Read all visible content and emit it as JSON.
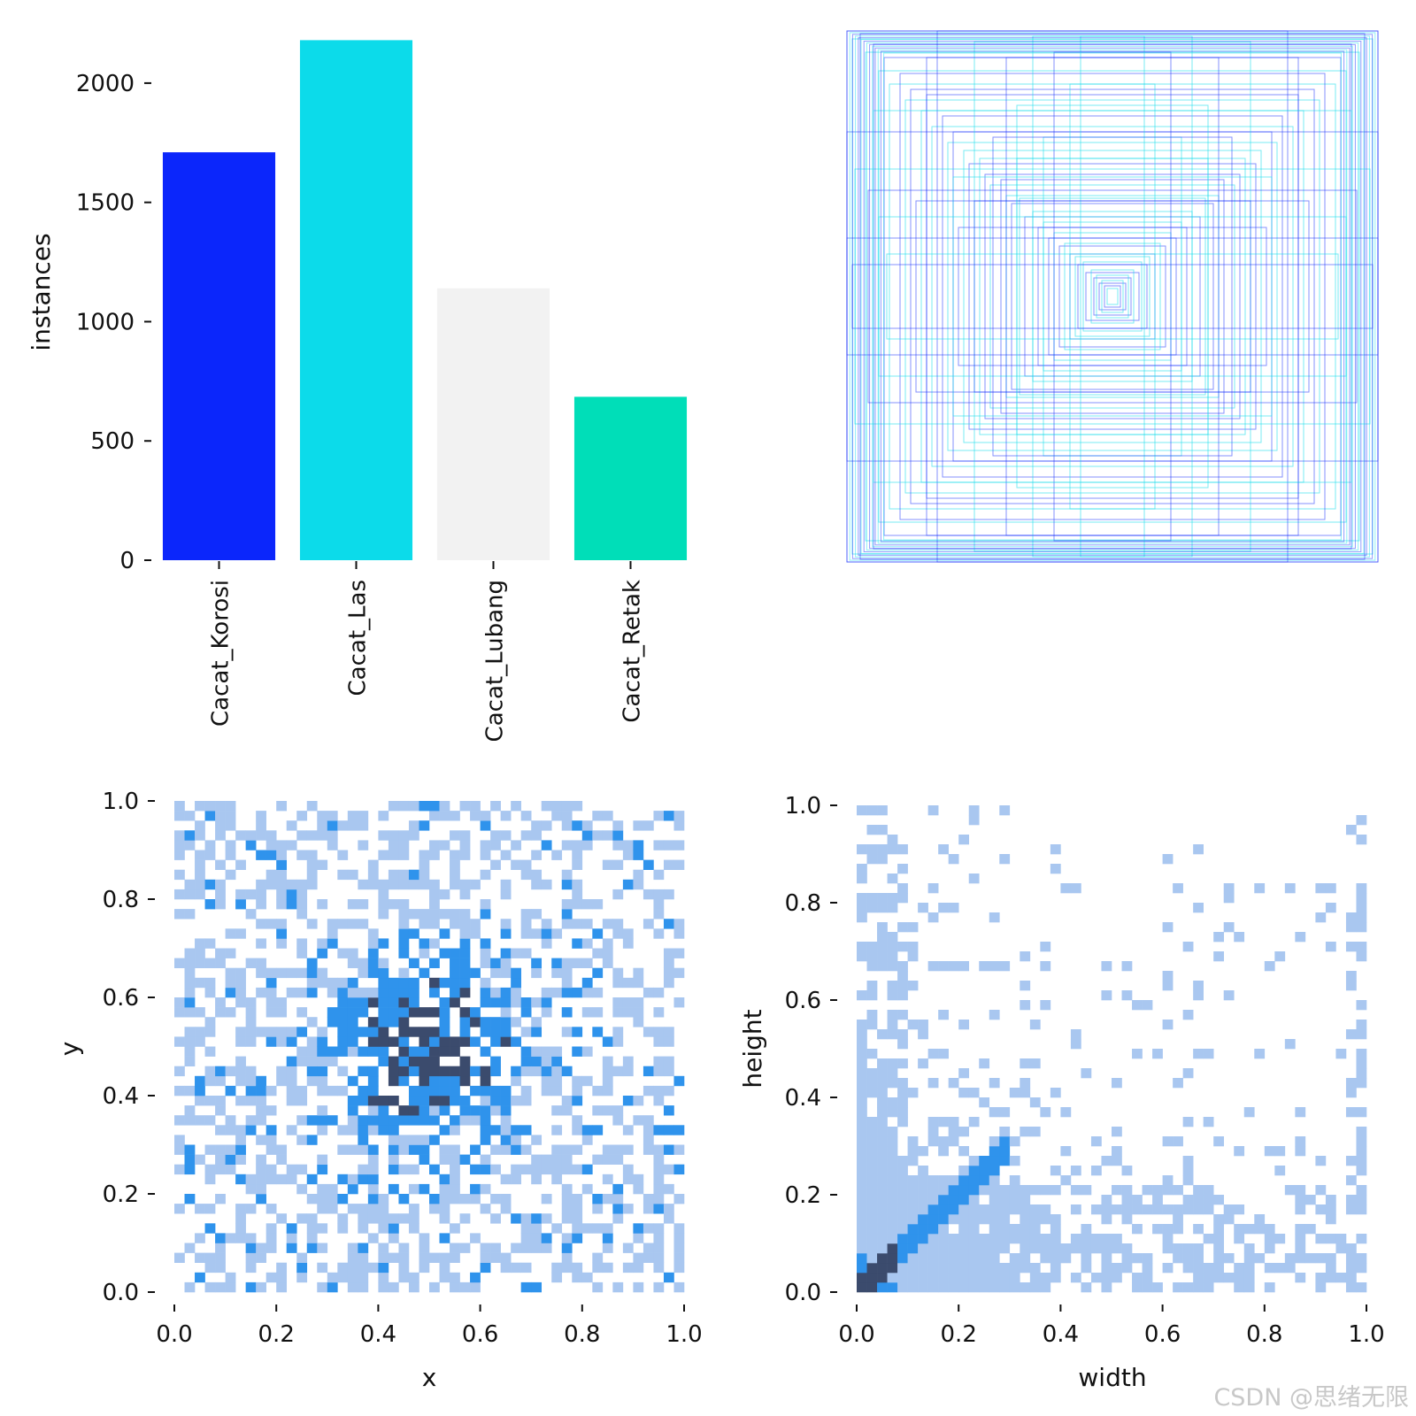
{
  "chart_data": [
    {
      "id": "class-counts",
      "type": "bar",
      "title": "",
      "xlabel": "",
      "ylabel": "instances",
      "ylim": [
        0,
        2200
      ],
      "yticks": [
        0,
        500,
        1000,
        1500,
        2000
      ],
      "categories": [
        "Cacat_Korosi",
        "Cacat_Las",
        "Cacat_Lubang",
        "Cacat_Retak"
      ],
      "values": [
        1710,
        2180,
        1140,
        685
      ],
      "colors": [
        "#0b26fb",
        "#0cdbea",
        "#f2f2f2",
        "#00deb8"
      ]
    },
    {
      "id": "box-overlay",
      "type": "scatter",
      "description_kind": "overlay",
      "title": "",
      "xlabel": "",
      "ylabel": "",
      "series_colors": [
        "#0b26fb",
        "#0cdbea"
      ],
      "boxes": [
        [
          1.0,
          1.0
        ],
        [
          0.98,
          0.97
        ],
        [
          0.95,
          0.99
        ],
        [
          0.93,
          0.92
        ],
        [
          0.9,
          0.95
        ],
        [
          0.88,
          0.85
        ],
        [
          0.86,
          0.9
        ],
        [
          0.84,
          0.8
        ],
        [
          0.8,
          0.84
        ],
        [
          0.78,
          0.74
        ],
        [
          0.76,
          0.78
        ],
        [
          0.72,
          0.7
        ],
        [
          0.7,
          0.76
        ],
        [
          0.68,
          0.64
        ],
        [
          0.64,
          0.68
        ],
        [
          0.62,
          0.58
        ],
        [
          0.6,
          0.62
        ],
        [
          0.56,
          0.55
        ],
        [
          0.54,
          0.5
        ],
        [
          0.5,
          0.52
        ],
        [
          0.48,
          0.46
        ],
        [
          0.46,
          0.42
        ],
        [
          0.42,
          0.44
        ],
        [
          0.4,
          0.38
        ],
        [
          0.38,
          0.35
        ],
        [
          0.35,
          0.37
        ],
        [
          0.33,
          0.3
        ],
        [
          0.3,
          0.32
        ],
        [
          0.28,
          0.26
        ],
        [
          0.26,
          0.28
        ],
        [
          0.24,
          0.22
        ],
        [
          0.22,
          0.24
        ],
        [
          0.2,
          0.19
        ],
        [
          0.18,
          0.2
        ],
        [
          0.16,
          0.16
        ],
        [
          0.14,
          0.15
        ],
        [
          0.13,
          0.12
        ],
        [
          0.11,
          0.13
        ],
        [
          0.1,
          0.09
        ],
        [
          0.08,
          0.1
        ],
        [
          0.07,
          0.07
        ],
        [
          0.06,
          0.08
        ],
        [
          0.05,
          0.05
        ],
        [
          0.04,
          0.06
        ],
        [
          0.03,
          0.04
        ],
        [
          0.02,
          0.03
        ],
        [
          1.0,
          0.62
        ],
        [
          0.97,
          0.48
        ],
        [
          0.92,
          0.4
        ],
        [
          0.88,
          0.3
        ],
        [
          0.66,
          1.0
        ],
        [
          0.52,
          0.96
        ],
        [
          0.4,
          0.9
        ],
        [
          0.3,
          0.98
        ],
        [
          1.0,
          0.22
        ],
        [
          0.85,
          0.16
        ],
        [
          0.22,
          0.92
        ],
        [
          0.16,
          0.8
        ],
        [
          0.74,
          0.36
        ],
        [
          0.36,
          0.72
        ],
        [
          0.58,
          0.26
        ],
        [
          0.26,
          0.6
        ],
        [
          0.98,
          0.12
        ],
        [
          0.12,
          0.98
        ],
        [
          0.7,
          0.9
        ],
        [
          0.9,
          0.7
        ],
        [
          0.45,
          0.6
        ],
        [
          0.6,
          0.45
        ],
        [
          0.52,
          0.36
        ],
        [
          0.36,
          0.52
        ]
      ]
    },
    {
      "id": "xy-histogram",
      "type": "heatmap",
      "title": "",
      "xlabel": "x",
      "ylabel": "y",
      "xlim": [
        0.0,
        1.0
      ],
      "ylim": [
        0.0,
        1.0
      ],
      "xticks": [
        "0.0",
        "0.2",
        "0.4",
        "0.6",
        "0.8",
        "1.0"
      ],
      "yticks": [
        "0.0",
        "0.2",
        "0.4",
        "0.6",
        "0.8",
        "1.0"
      ],
      "bins": 50,
      "center": [
        0.5,
        0.5
      ],
      "color_low": "#a9c7f0",
      "color_mid": "#2f93ec",
      "color_high": "#3b4b6d"
    },
    {
      "id": "wh-histogram",
      "type": "heatmap",
      "title": "",
      "xlabel": "width",
      "ylabel": "height",
      "xlim": [
        0.0,
        1.0
      ],
      "ylim": [
        0.0,
        1.0
      ],
      "xticks": [
        "0.0",
        "0.2",
        "0.4",
        "0.6",
        "0.8",
        "1.0"
      ],
      "yticks": [
        "0.0",
        "0.2",
        "0.4",
        "0.6",
        "0.8",
        "1.0"
      ],
      "bins": 50,
      "color_low": "#a9c7f0",
      "color_mid": "#2f93ec",
      "color_high": "#3b4b6d"
    }
  ],
  "watermark": "CSDN @思绪无限"
}
